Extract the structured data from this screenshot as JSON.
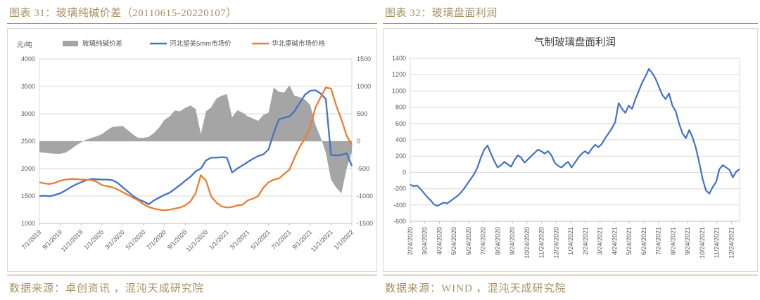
{
  "colors": {
    "accent_gold": "#A89060",
    "chart_border": "#D9D9D9",
    "grid": "#D9D9D9",
    "axis_line": "#BFBFBF",
    "axis_text": "#595959",
    "blue": "#4472C4",
    "orange": "#ED7D31",
    "gray": "#A5A5A5",
    "chart_title_text": "#404040"
  },
  "left_panel": {
    "title": "图表 31：玻璃纯碱价差（20110615-20220107）",
    "source": "数据来源：卓创资讯 ，混沌天成研究院"
  },
  "right_panel": {
    "title": "图表 32：玻璃盘面利润",
    "source": "数据来源：WIND ，混沌天成研究院"
  },
  "chart_data": [
    {
      "type": "combo-area-line",
      "unit_label": "元/吨",
      "x_resolution": "semi-monthly",
      "x_start": "7/1/2019",
      "x_end": "1/1/2022",
      "x_tick_labels": [
        "7/1/2019",
        "9/1/2019",
        "11/1/2019",
        "1/1/2020",
        "3/1/2020",
        "5/1/2020",
        "7/1/2020",
        "9/1/2020",
        "11/1/2020",
        "1/1/2021",
        "3/1/2021",
        "5/1/2021",
        "7/1/2021",
        "9/1/2021",
        "11/1/2021",
        "1/1/2022"
      ],
      "y_left": {
        "label": "元/吨",
        "min": 1000,
        "max": 4000,
        "ticks": [
          4000,
          3500,
          3000,
          2500,
          2000,
          1500,
          1000
        ]
      },
      "y_right": {
        "min": -1500,
        "max": 1500,
        "ticks": [
          1500,
          1000,
          500,
          0,
          -500,
          -1000,
          -1500
        ]
      },
      "grid": true,
      "legend_position": "top",
      "series": [
        {
          "name": "玻璃纯碱价差",
          "type": "area",
          "axis": "right",
          "color": "#A5A5A5",
          "values": [
            -200,
            -210,
            -220,
            -230,
            -230,
            -210,
            -150,
            -80,
            -20,
            30,
            60,
            90,
            130,
            200,
            260,
            270,
            280,
            200,
            120,
            60,
            60,
            80,
            150,
            250,
            390,
            450,
            560,
            545,
            610,
            650,
            590,
            130,
            545,
            620,
            780,
            830,
            860,
            435,
            565,
            520,
            455,
            415,
            370,
            480,
            520,
            980,
            900,
            890,
            1020,
            830,
            805,
            760,
            660,
            300,
            70,
            -210,
            -700,
            -850,
            -950,
            -500,
            -200
          ]
        },
        {
          "name": "河北望美5mm市场价",
          "type": "line",
          "axis": "left",
          "color": "#4472C4",
          "values": [
            1500,
            1505,
            1495,
            1520,
            1550,
            1600,
            1660,
            1710,
            1750,
            1790,
            1810,
            1805,
            1800,
            1800,
            1790,
            1740,
            1660,
            1580,
            1500,
            1440,
            1400,
            1350,
            1420,
            1470,
            1520,
            1560,
            1630,
            1700,
            1780,
            1850,
            1950,
            2000,
            2150,
            2200,
            2200,
            2210,
            2200,
            1930,
            2000,
            2060,
            2120,
            2180,
            2230,
            2260,
            2350,
            2650,
            2900,
            2930,
            2950,
            3050,
            3200,
            3350,
            3420,
            3430,
            3370,
            3270,
            2250,
            2240,
            2250,
            2280,
            2050
          ]
        },
        {
          "name": "华北重碱市场价格",
          "type": "line",
          "axis": "left",
          "color": "#ED7D31",
          "values": [
            1750,
            1730,
            1720,
            1740,
            1780,
            1800,
            1810,
            1810,
            1800,
            1800,
            1790,
            1760,
            1700,
            1680,
            1660,
            1620,
            1570,
            1520,
            1470,
            1420,
            1350,
            1300,
            1270,
            1250,
            1240,
            1250,
            1270,
            1290,
            1330,
            1400,
            1550,
            1880,
            1780,
            1490,
            1380,
            1310,
            1290,
            1300,
            1330,
            1340,
            1420,
            1450,
            1500,
            1650,
            1750,
            1800,
            1820,
            1900,
            1980,
            2200,
            2400,
            2550,
            2760,
            3110,
            3300,
            3480,
            3460,
            3150,
            2900,
            2600,
            2430
          ]
        }
      ]
    },
    {
      "type": "line",
      "title": "气制玻璃盘面利润",
      "x_resolution": "weekly",
      "x_start": "2/24/2020",
      "x_end": "1/7/2022",
      "x_tick_labels": [
        "2/24/2020",
        "3/24/2020",
        "4/24/2020",
        "5/24/2020",
        "6/24/2020",
        "7/24/2020",
        "8/24/2020",
        "9/24/2020",
        "10/24/2020",
        "11/24/2020",
        "12/24/2020",
        "1/24/2021",
        "2/24/2021",
        "3/24/2021",
        "4/24/2021",
        "5/24/2021",
        "6/24/2021",
        "7/24/2021",
        "8/24/2021",
        "9/24/2021",
        "10/24/2021",
        "11/24/2021",
        "12/24/2021"
      ],
      "y": {
        "min": -600,
        "max": 1400,
        "ticks": [
          1400,
          1200,
          1000,
          800,
          600,
          400,
          200,
          0,
          -200,
          -400,
          -600
        ]
      },
      "grid": true,
      "legend_position": "none",
      "series": [
        {
          "name": "气制玻璃盘面利润",
          "color": "#4472C4",
          "values": [
            -150,
            -170,
            -160,
            -200,
            -250,
            -300,
            -340,
            -390,
            -410,
            -390,
            -370,
            -380,
            -350,
            -320,
            -290,
            -250,
            -200,
            -140,
            -80,
            -20,
            60,
            180,
            280,
            330,
            230,
            140,
            60,
            90,
            130,
            100,
            70,
            150,
            210,
            180,
            120,
            160,
            200,
            240,
            280,
            260,
            230,
            260,
            210,
            120,
            80,
            60,
            100,
            130,
            60,
            120,
            180,
            230,
            260,
            230,
            290,
            340,
            310,
            350,
            420,
            480,
            540,
            620,
            850,
            780,
            730,
            820,
            780,
            900,
            1000,
            1100,
            1180,
            1270,
            1220,
            1150,
            1050,
            950,
            900,
            970,
            820,
            750,
            600,
            480,
            420,
            520,
            430,
            300,
            120,
            -80,
            -220,
            -260,
            -180,
            -120,
            40,
            90,
            60,
            30,
            -60,
            10,
            40
          ]
        }
      ]
    }
  ]
}
